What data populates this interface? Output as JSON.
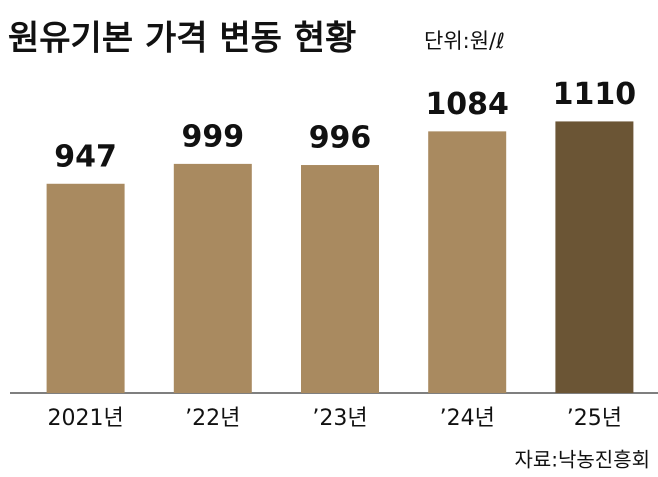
{
  "chart_data": {
    "type": "bar",
    "title": "원유기본 가격 변동 현황",
    "subtitle": "단위:원/ℓ",
    "source": "자료:낙농진흥회",
    "categories": [
      "2021년",
      "’22년",
      "’23년",
      "’24년",
      "’25년"
    ],
    "values": [
      947,
      999,
      996,
      1084,
      1110
    ],
    "colors": [
      "#a98a60",
      "#a98a60",
      "#a98a60",
      "#a98a60",
      "#6b5535"
    ],
    "ylim": [
      400,
      1200
    ]
  }
}
